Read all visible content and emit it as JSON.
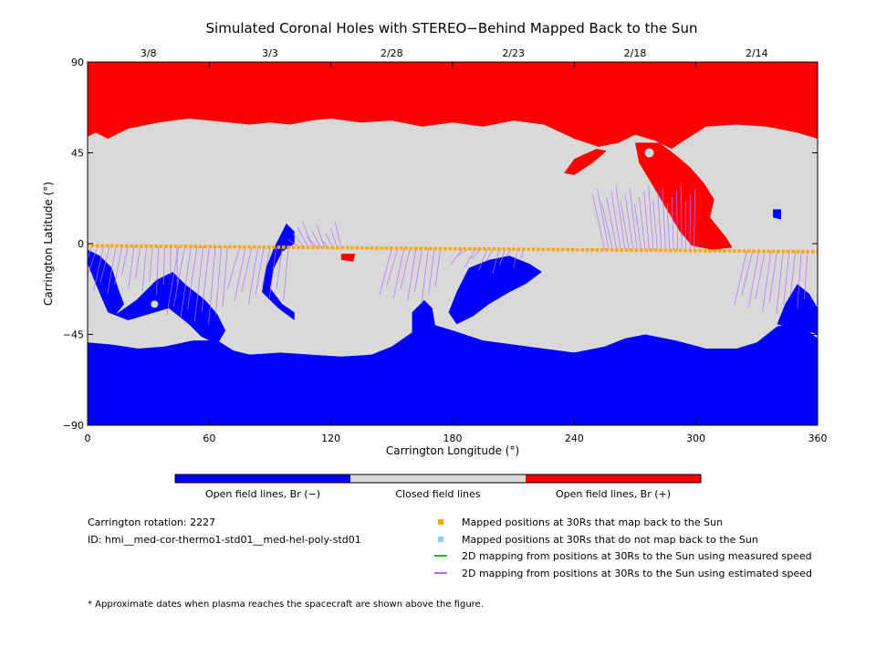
{
  "chart_data": {
    "type": "map",
    "title": "Simulated Coronal Holes with STEREO−Behind Mapped Back to the Sun",
    "xlabel": "Carrington Longitude (°)",
    "ylabel": "Carrington Latitude (°)",
    "xlim": [
      0,
      360
    ],
    "ylim": [
      -90,
      90
    ],
    "x_ticks": [
      0,
      60,
      120,
      180,
      240,
      300,
      360
    ],
    "y_ticks": [
      -90,
      -45,
      0,
      45,
      90
    ],
    "y_tick_labels": [
      "−90",
      "−45",
      "0",
      "45",
      "90"
    ],
    "top_date_labels": [
      {
        "label": "3/8",
        "longitude": 30
      },
      {
        "label": "3/3",
        "longitude": 90
      },
      {
        "label": "2/28",
        "longitude": 150
      },
      {
        "label": "2/23",
        "longitude": 210
      },
      {
        "label": "2/18",
        "longitude": 270
      },
      {
        "label": "2/14",
        "longitude": 330
      }
    ],
    "colors": {
      "open_negative": "#0000ff",
      "closed": "#d9d9d9",
      "open_positive": "#ff0000",
      "mapped_points": "#ffa500",
      "unmapped_points": "#87ceeb",
      "measured_speed": "#00cc00",
      "estimated_speed": "#b070ff"
    },
    "colorbar": [
      "Open field lines, Br (−)",
      "Closed field lines",
      "Open field lines, Br (+)"
    ],
    "regions": {
      "north_polar_positive": [
        [
          0,
          90
        ],
        [
          0,
          53
        ],
        [
          4,
          55
        ],
        [
          10,
          52
        ],
        [
          20,
          57
        ],
        [
          35,
          60
        ],
        [
          50,
          62
        ],
        [
          70,
          60
        ],
        [
          80,
          59
        ],
        [
          90,
          60
        ],
        [
          100,
          59
        ],
        [
          110,
          61
        ],
        [
          120,
          62
        ],
        [
          135,
          60
        ],
        [
          150,
          61
        ],
        [
          165,
          58
        ],
        [
          180,
          60
        ],
        [
          195,
          58
        ],
        [
          210,
          61
        ],
        [
          225,
          59
        ],
        [
          240,
          52
        ],
        [
          252,
          48
        ],
        [
          262,
          50
        ],
        [
          270,
          54
        ],
        [
          280,
          51
        ],
        [
          288,
          47
        ],
        [
          294,
          51
        ],
        [
          305,
          58
        ],
        [
          320,
          59
        ],
        [
          335,
          58
        ],
        [
          350,
          55
        ],
        [
          360,
          52
        ],
        [
          360,
          90
        ]
      ],
      "positive_lobe": [
        [
          270,
          50
        ],
        [
          282,
          50
        ],
        [
          290,
          44
        ],
        [
          297,
          38
        ],
        [
          304,
          30
        ],
        [
          309,
          22
        ],
        [
          307,
          13
        ],
        [
          315,
          3
        ],
        [
          318,
          -2
        ],
        [
          308,
          -3
        ],
        [
          298,
          -1
        ],
        [
          292,
          6
        ],
        [
          285,
          18
        ],
        [
          278,
          30
        ],
        [
          272,
          40
        ],
        [
          270,
          50
        ]
      ],
      "positive_patch_2": [
        [
          235,
          35
        ],
        [
          240,
          42
        ],
        [
          251,
          47
        ],
        [
          256,
          46
        ],
        [
          249,
          40
        ],
        [
          240,
          34
        ],
        [
          235,
          35
        ]
      ],
      "negative_south_cap": [
        [
          0,
          -90
        ],
        [
          0,
          -49
        ],
        [
          12,
          -50
        ],
        [
          25,
          -52
        ],
        [
          38,
          -51
        ],
        [
          52,
          -48
        ],
        [
          64,
          -48
        ],
        [
          72,
          -53
        ],
        [
          80,
          -55
        ],
        [
          95,
          -54
        ],
        [
          110,
          -55
        ],
        [
          125,
          -56
        ],
        [
          140,
          -55
        ],
        [
          150,
          -51
        ],
        [
          160,
          -44
        ],
        [
          170,
          -40
        ],
        [
          180,
          -43
        ],
        [
          195,
          -48
        ],
        [
          210,
          -50
        ],
        [
          225,
          -52
        ],
        [
          240,
          -54
        ],
        [
          255,
          -51
        ],
        [
          265,
          -47
        ],
        [
          275,
          -45
        ],
        [
          290,
          -48
        ],
        [
          305,
          -52
        ],
        [
          320,
          -52
        ],
        [
          330,
          -49
        ],
        [
          340,
          -41
        ],
        [
          350,
          -39
        ],
        [
          360,
          -47
        ],
        [
          360,
          -90
        ]
      ],
      "negative_west_lobe": [
        [
          0,
          -3
        ],
        [
          6,
          -6
        ],
        [
          12,
          -12
        ],
        [
          15,
          -22
        ],
        [
          18,
          -30
        ],
        [
          14,
          -35
        ],
        [
          24,
          -28
        ],
        [
          34,
          -18
        ],
        [
          42,
          -14
        ],
        [
          48,
          -20
        ],
        [
          58,
          -28
        ],
        [
          64,
          -35
        ],
        [
          68,
          -43
        ],
        [
          64,
          -50
        ],
        [
          56,
          -46
        ],
        [
          50,
          -40
        ],
        [
          40,
          -32
        ],
        [
          30,
          -35
        ],
        [
          20,
          -38
        ],
        [
          10,
          -34
        ],
        [
          4,
          -20
        ],
        [
          0,
          -10
        ]
      ],
      "negative_channel_1": [
        [
          98,
          10
        ],
        [
          102,
          6
        ],
        [
          102,
          0
        ],
        [
          96,
          -4
        ],
        [
          92,
          -12
        ],
        [
          90,
          -22
        ],
        [
          96,
          -30
        ],
        [
          102,
          -34
        ],
        [
          102,
          -38
        ],
        [
          94,
          -32
        ],
        [
          86,
          -24
        ],
        [
          88,
          -12
        ],
        [
          92,
          -2
        ],
        [
          98,
          10
        ]
      ],
      "negative_channel_2": [
        [
          188,
          -12
        ],
        [
          198,
          -8
        ],
        [
          208,
          -6
        ],
        [
          218,
          -10
        ],
        [
          224,
          -14
        ],
        [
          216,
          -20
        ],
        [
          208,
          -24
        ],
        [
          198,
          -30
        ],
        [
          190,
          -36
        ],
        [
          182,
          -40
        ],
        [
          178,
          -34
        ],
        [
          182,
          -24
        ],
        [
          188,
          -12
        ]
      ],
      "negative_channel_3": [
        [
          160,
          -34
        ],
        [
          166,
          -28
        ],
        [
          170,
          -32
        ],
        [
          172,
          -44
        ],
        [
          168,
          -50
        ],
        [
          160,
          -46
        ],
        [
          160,
          -34
        ]
      ],
      "negative_patch_se": [
        [
          340,
          -40
        ],
        [
          344,
          -30
        ],
        [
          350,
          -20
        ],
        [
          356,
          -25
        ],
        [
          360,
          -32
        ],
        [
          360,
          -45
        ],
        [
          350,
          -42
        ],
        [
          340,
          -40
        ]
      ],
      "negative_small": [
        [
          338,
          17
        ],
        [
          342,
          17
        ],
        [
          342,
          12
        ],
        [
          338,
          13
        ],
        [
          338,
          17
        ]
      ],
      "positive_small": [
        [
          125,
          -5
        ],
        [
          132,
          -5
        ],
        [
          131,
          -9
        ],
        [
          125,
          -8
        ],
        [
          125,
          -5
        ]
      ]
    },
    "mapped_positions_30Rs": {
      "longitude_start": 0,
      "longitude_end": 360,
      "latitude_start": -1,
      "latitude_end": -4,
      "count": 150
    },
    "annotations": [
      "* Approximate dates when plasma reaches the spacecraft are shown above the figure."
    ]
  },
  "info": {
    "carrington_rotation": "Carrington rotation: 2227",
    "id": "ID: hmi__med-cor-thermo1-std01__med-hel-poly-std01"
  },
  "legend": [
    {
      "label": "Mapped positions at 30Rs that map back to the Sun",
      "icon": "orange-square"
    },
    {
      "label": "Mapped positions at 30Rs that do not map back to the Sun",
      "icon": "lightblue-square"
    },
    {
      "label": "2D mapping from positions at 30Rs to the Sun using measured speed",
      "icon": "green-line"
    },
    {
      "label": "2D mapping from positions at 30Rs to the Sun using estimated speed",
      "icon": "purple-line"
    }
  ],
  "footnote": "* Approximate dates when plasma reaches the spacecraft are shown above the figure."
}
